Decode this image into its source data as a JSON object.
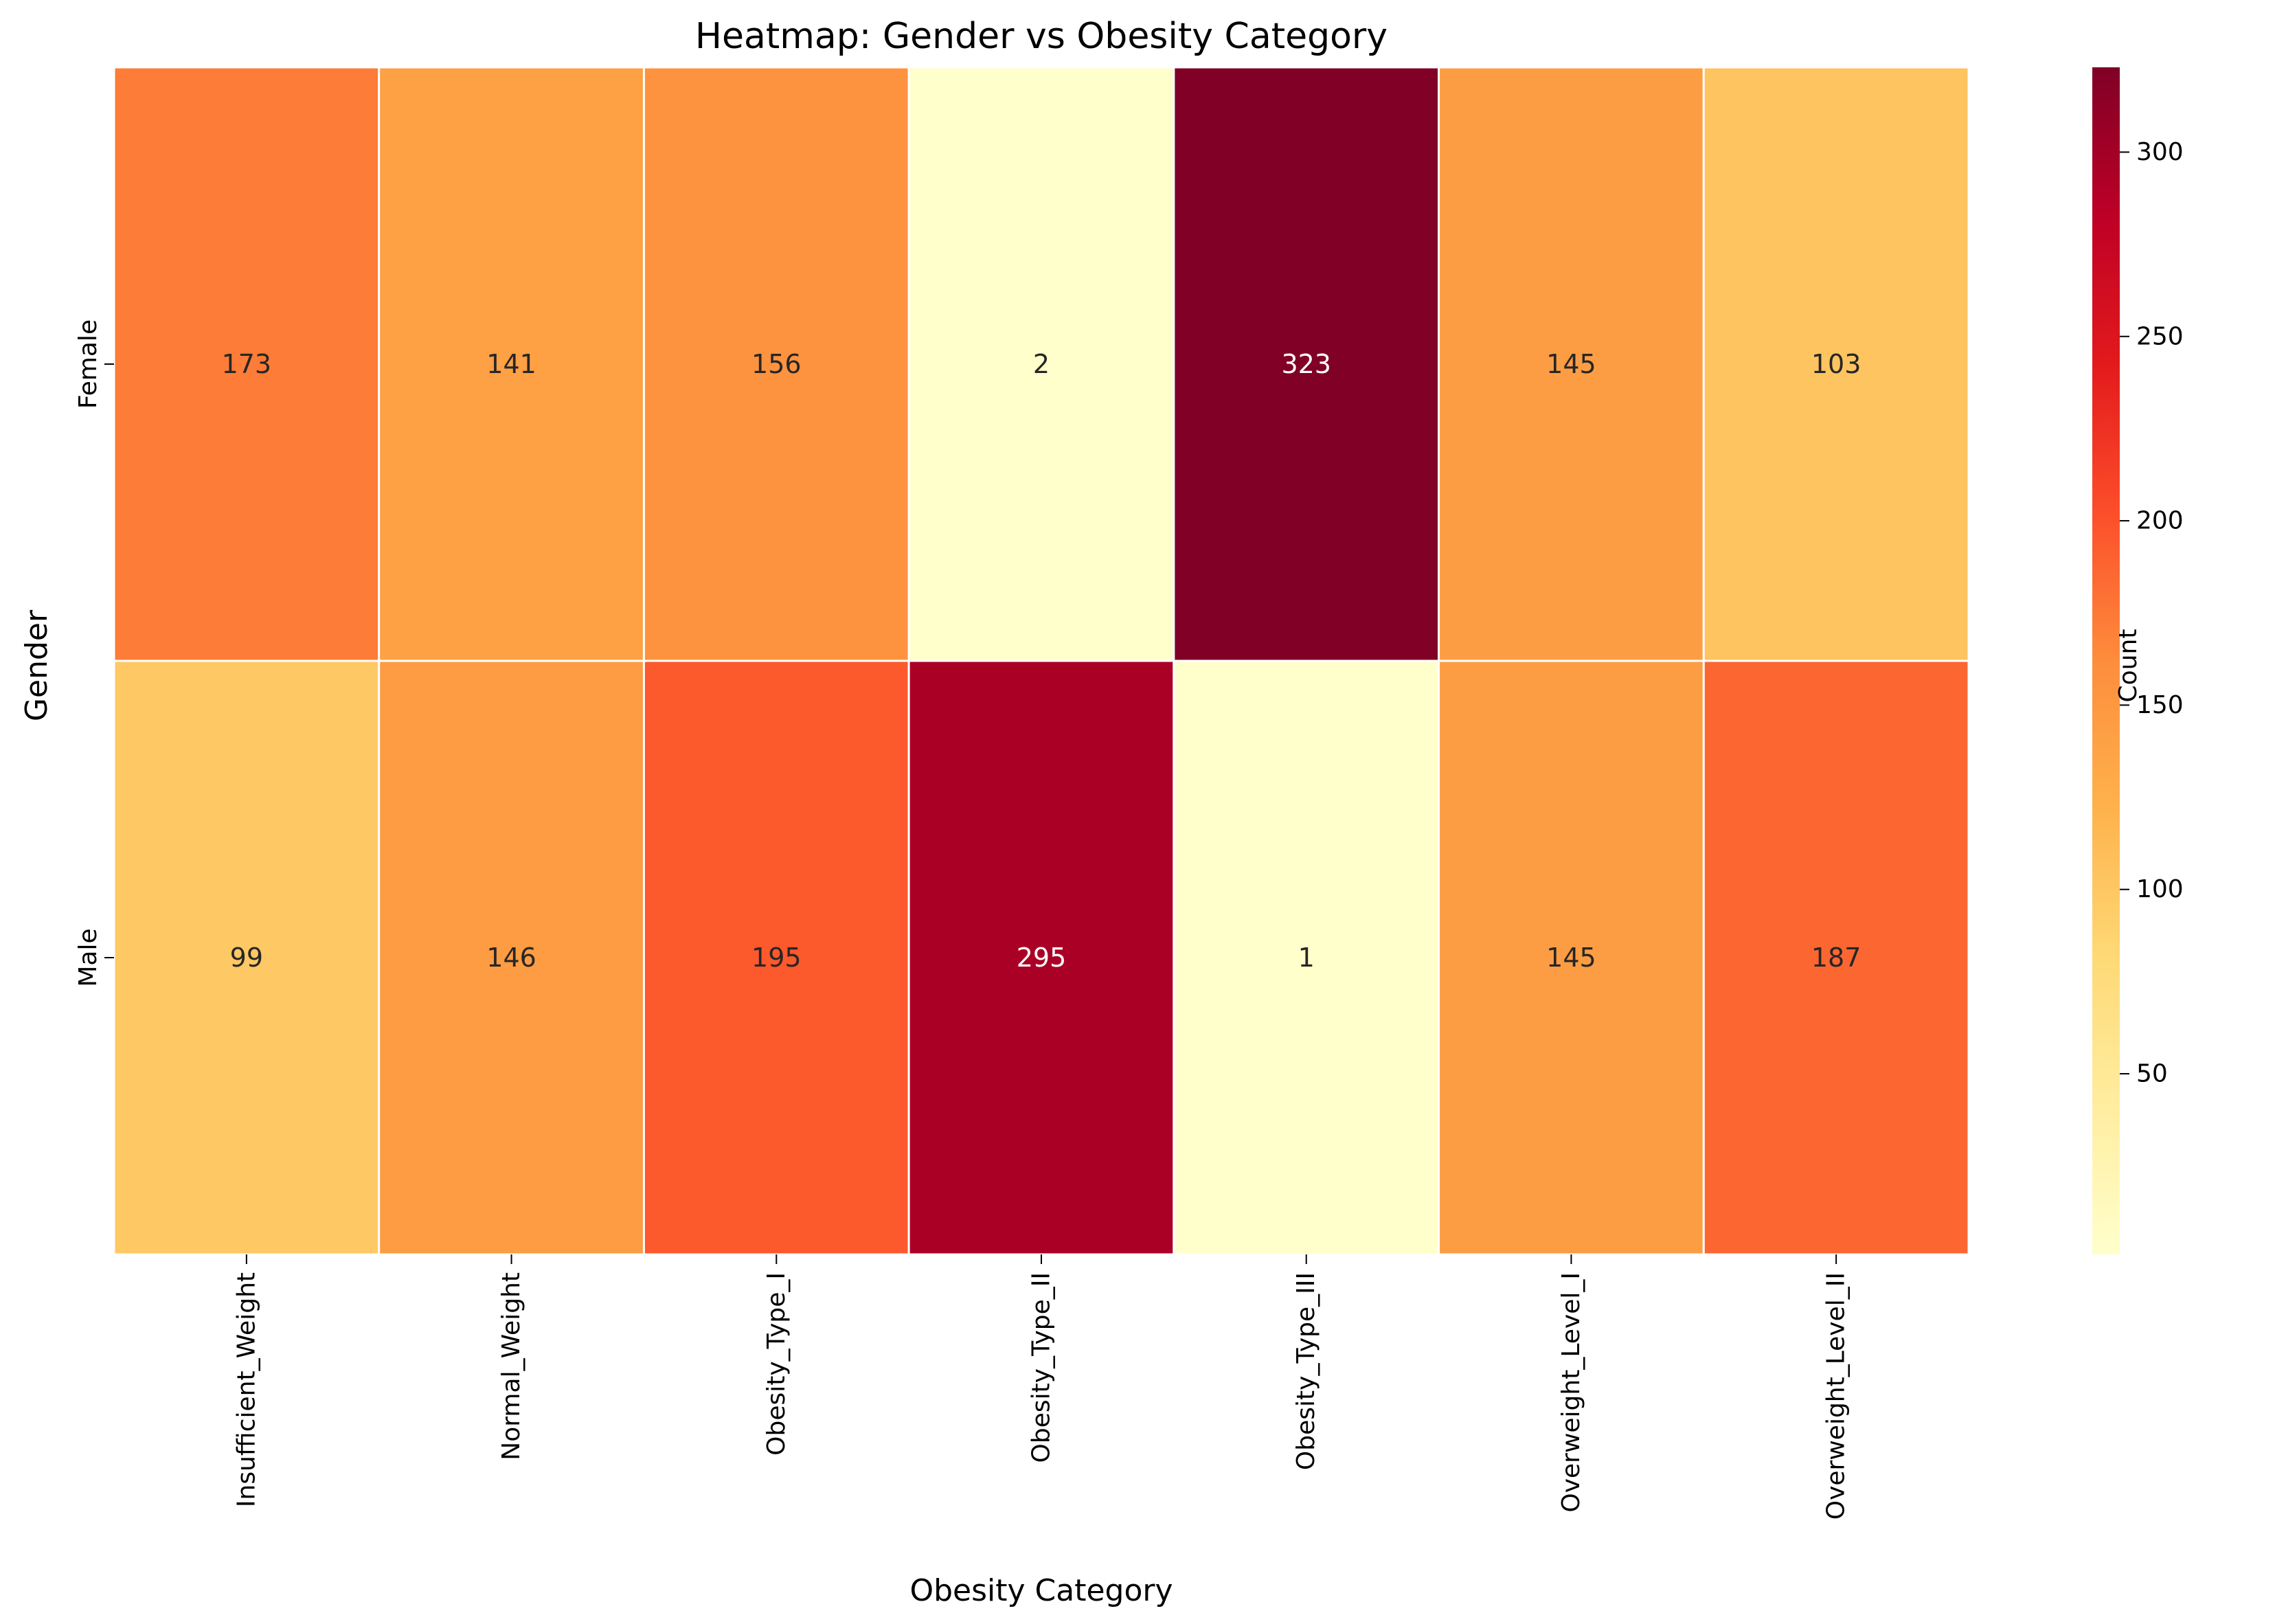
{
  "chart_data": {
    "type": "heatmap",
    "title": "Heatmap: Gender vs Obesity Category",
    "xlabel": "Obesity Category",
    "ylabel": "Gender",
    "x_categories": [
      "Insufficient_Weight",
      "Normal_Weight",
      "Obesity_Type_I",
      "Obesity_Type_II",
      "Obesity_Type_III",
      "Overweight_Level_I",
      "Overweight_Level_II"
    ],
    "y_categories": [
      "Female",
      "Male"
    ],
    "values": [
      [
        173,
        141,
        156,
        2,
        323,
        145,
        103
      ],
      [
        99,
        146,
        195,
        295,
        1,
        145,
        187
      ]
    ],
    "colormap": "YlOrRd",
    "color_range": [
      1,
      323
    ],
    "colorbar": {
      "label": "Count",
      "ticks": [
        50,
        100,
        150,
        200,
        250,
        300
      ]
    },
    "annotations": true,
    "grid": false
  }
}
